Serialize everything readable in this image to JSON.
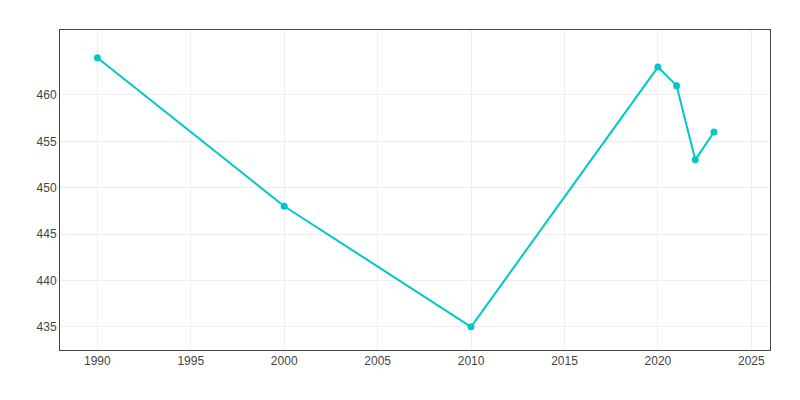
{
  "chart_data": {
    "type": "line",
    "x": [
      1990,
      2000,
      2010,
      2020,
      2021,
      2022,
      2023
    ],
    "values": [
      464,
      448,
      435,
      463,
      461,
      453,
      456
    ],
    "color": "#00C8C8",
    "marker": "circle",
    "xlim": [
      1988,
      2026
    ],
    "ylim": [
      432.5,
      467
    ],
    "xticks": [
      1990,
      1995,
      2000,
      2005,
      2010,
      2015,
      2020,
      2025
    ],
    "yticks": [
      435,
      440,
      445,
      450,
      455,
      460
    ],
    "grid": true
  }
}
